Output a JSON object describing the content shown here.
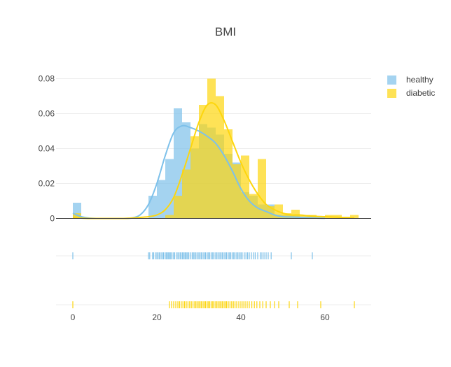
{
  "chart_data": {
    "type": "distplot",
    "title": "BMI",
    "xlabel": "",
    "ylabel": "",
    "xlim": [
      -4,
      71
    ],
    "ylim": [
      0,
      0.085
    ],
    "bin_width": 2,
    "x_ticks": [
      0,
      20,
      40,
      60
    ],
    "y_ticks": [
      0,
      0.02,
      0.04,
      0.06,
      0.08
    ],
    "y_tick_labels": [
      "0",
      "0.02",
      "0.04",
      "0.06",
      "0.08"
    ],
    "legend_placement": "top-right",
    "grid": true,
    "series": [
      {
        "name": "healthy",
        "color": "#7ec1ea",
        "histogram": {
          "bin_starts": [
            0,
            18,
            20,
            22,
            24,
            26,
            28,
            30,
            32,
            34,
            36,
            38,
            40,
            42,
            44,
            46,
            48,
            50,
            52,
            54,
            56
          ],
          "densities": [
            0.009,
            0.013,
            0.022,
            0.034,
            0.063,
            0.055,
            0.04,
            0.054,
            0.052,
            0.048,
            0.037,
            0.032,
            0.015,
            0.013,
            0.008,
            0.008,
            0.002,
            0.002,
            0.002,
            0.001,
            0.001
          ]
        },
        "curve": {
          "x": [
            0,
            2,
            4,
            6,
            8,
            10,
            12,
            14,
            16,
            18,
            20,
            22,
            24,
            26,
            28,
            30,
            32,
            34,
            36,
            38,
            40,
            42,
            44,
            46,
            48,
            50,
            52,
            54,
            56,
            58,
            60
          ],
          "y": [
            0.003,
            0.001,
            0.0002,
            0,
            0,
            0,
            0,
            0.0003,
            0.002,
            0.008,
            0.02,
            0.036,
            0.049,
            0.053,
            0.052,
            0.05,
            0.047,
            0.043,
            0.036,
            0.027,
            0.017,
            0.01,
            0.006,
            0.004,
            0.002,
            0.001,
            0.0008,
            0.0006,
            0.0004,
            0.0002,
            0.0001
          ]
        },
        "rug": [
          0,
          18,
          18.3,
          19,
          19.2,
          19.6,
          20,
          20.3,
          20.6,
          21,
          21.3,
          21.6,
          22,
          22.3,
          22.5,
          22.8,
          23,
          23.3,
          23.6,
          24,
          24.2,
          24.6,
          25,
          25.3,
          25.6,
          26,
          26.2,
          26.5,
          26.8,
          27,
          27.3,
          27.6,
          28,
          28.4,
          28.7,
          29,
          29.3,
          29.7,
          30,
          30.3,
          30.6,
          31,
          31.3,
          31.6,
          32,
          32.3,
          32.6,
          33,
          33.3,
          33.6,
          34,
          34.3,
          34.6,
          35,
          35.3,
          35.6,
          36,
          36.3,
          36.6,
          37,
          37.3,
          37.6,
          38,
          38.3,
          38.6,
          39,
          39.3,
          39.6,
          40,
          40.3,
          40.8,
          41.2,
          41.6,
          42,
          42.5,
          43,
          43.4,
          44,
          44.6,
          45,
          45.5,
          46,
          46.5,
          47.2,
          52,
          57
        ]
      },
      {
        "name": "diabetic",
        "color": "#fdd60e",
        "histogram": {
          "bin_starts": [
            0,
            22,
            24,
            26,
            28,
            30,
            32,
            34,
            36,
            38,
            40,
            42,
            44,
            46,
            48,
            50,
            52,
            54,
            56,
            58,
            60,
            62,
            64,
            66
          ],
          "densities": [
            0.003,
            0.002,
            0.013,
            0.028,
            0.047,
            0.065,
            0.08,
            0.07,
            0.051,
            0.031,
            0.036,
            0.014,
            0.034,
            0.007,
            0.008,
            0.003,
            0.005,
            0.002,
            0.002,
            0.001,
            0.002,
            0.002,
            0.001,
            0.002
          ]
        },
        "curve": {
          "x": [
            0,
            2,
            4,
            6,
            8,
            10,
            12,
            14,
            16,
            18,
            20,
            22,
            24,
            26,
            28,
            30,
            32,
            34,
            36,
            38,
            40,
            42,
            44,
            46,
            48,
            50,
            52,
            54,
            56,
            58,
            60,
            62,
            64,
            66,
            67
          ],
          "y": [
            0.0005,
            0.0002,
            0,
            0,
            0,
            0,
            0,
            0.0002,
            0.0006,
            0.001,
            0.002,
            0.005,
            0.012,
            0.025,
            0.04,
            0.055,
            0.065,
            0.065,
            0.056,
            0.044,
            0.032,
            0.022,
            0.014,
            0.008,
            0.005,
            0.003,
            0.002,
            0.002,
            0.0015,
            0.0012,
            0.001,
            0.0008,
            0.0006,
            0.0004,
            0.0003
          ]
        },
        "rug": [
          0,
          23,
          23.5,
          24,
          24.5,
          25,
          25.4,
          25.8,
          26.2,
          26.6,
          27,
          27.4,
          27.8,
          28.2,
          28.6,
          29,
          29.3,
          29.6,
          30,
          30.3,
          30.6,
          31,
          31.3,
          31.6,
          32,
          32.3,
          32.6,
          33,
          33.3,
          33.6,
          34,
          34.3,
          34.6,
          35,
          35.3,
          35.6,
          36,
          36.3,
          36.6,
          37,
          37.4,
          37.8,
          38.2,
          38.6,
          39,
          39.5,
          40,
          40.5,
          41,
          41.5,
          42,
          42.6,
          43.2,
          43.8,
          44.5,
          45.2,
          46,
          47,
          48,
          49,
          51.5,
          53.5,
          59,
          67
        ]
      }
    ]
  }
}
